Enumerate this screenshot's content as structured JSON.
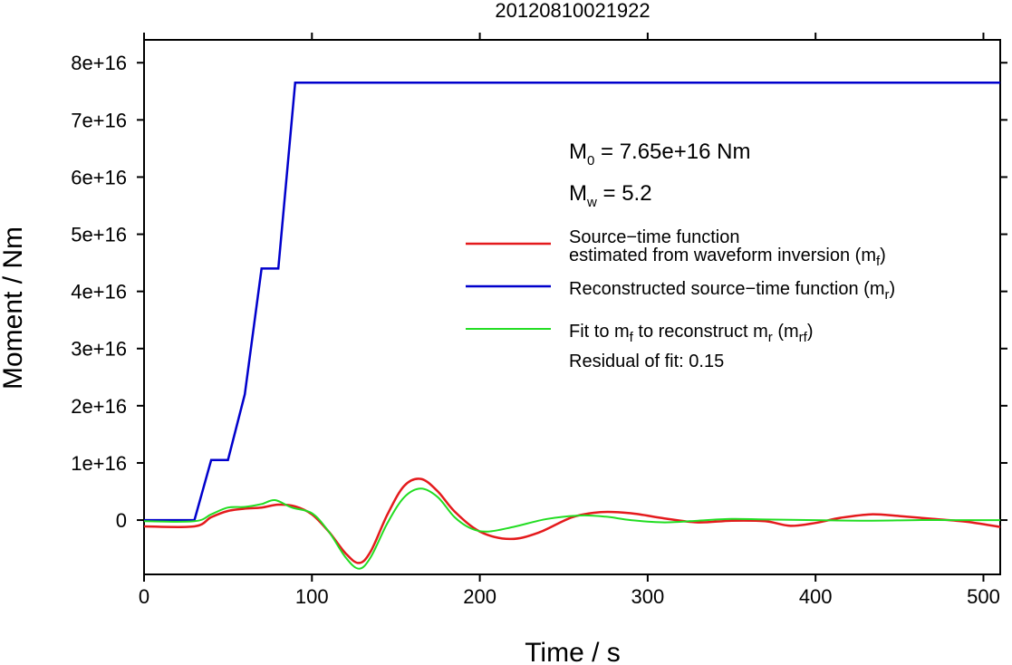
{
  "chart_data": {
    "type": "line",
    "title": "20120810021922",
    "xlabel": "Time / s",
    "ylabel": "Moment / Nm",
    "xlim": [
      0,
      510
    ],
    "ylim": [
      -9500000000000000.0,
      8.4e+16
    ],
    "x_ticks": [
      0,
      100,
      200,
      300,
      400,
      500
    ],
    "x_tick_labels": [
      "0",
      "100",
      "200",
      "300",
      "400",
      "500"
    ],
    "y_ticks": [
      0,
      1e+16,
      2e+16,
      3e+16,
      4e+16,
      5e+16,
      6e+16,
      7e+16,
      8e+16
    ],
    "y_tick_labels": [
      "0",
      "1e+16",
      "2e+16",
      "3e+16",
      "4e+16",
      "5e+16",
      "6e+16",
      "7e+16",
      "8e+16"
    ],
    "grid": false,
    "legend_position": "right",
    "series": [
      {
        "name_main": "Source−time function",
        "name_line2": "estimated from waveform inversion (m",
        "name_sub": "f",
        "name_end": ")",
        "color": "#e41a1c",
        "x": [
          0,
          30,
          40,
          50,
          60,
          70,
          80,
          90,
          100,
          110,
          120,
          128,
          135,
          145,
          155,
          165,
          175,
          185,
          200,
          218,
          235,
          255,
          272,
          290,
          310,
          330,
          350,
          370,
          385,
          400,
          415,
          433,
          450,
          470,
          490,
          510
        ],
        "y": [
          -1100000000000000.0,
          -1100000000000000.0,
          500000000000000.0,
          1600000000000000.0,
          2000000000000000.0,
          2200000000000000.0,
          2700000000000000.0,
          2400000000000000.0,
          1000000000000000.0,
          -2000000000000000.0,
          -5800000000000000.0,
          -7500000000000000.0,
          -5500000000000000.0,
          1000000000000000.0,
          6000000000000000.0,
          7200000000000000.0,
          5000000000000000.0,
          1500000000000000.0,
          -2000000000000000.0,
          -3300000000000000.0,
          -2200000000000000.0,
          500000000000000.0,
          1400000000000000.0,
          1200000000000000.0,
          300000000000000.0,
          -400000000000000.0,
          -100000000000000.0,
          -200000000000000.0,
          -1000000000000000.0,
          -500000000000000.0,
          400000000000000.0,
          1000000000000000.0,
          700000000000000.0,
          200000000000000.0,
          -300000000000000.0,
          -1200000000000000.0
        ]
      },
      {
        "name_main": "Reconstructed source−time function (m",
        "name_sub": "r",
        "name_end": ")",
        "color": "#0000cc",
        "x": [
          0,
          30,
          40,
          50,
          60,
          70,
          80,
          90,
          510
        ],
        "y": [
          0,
          0,
          1.05e+16,
          1.05e+16,
          2.2e+16,
          4.4e+16,
          4.4e+16,
          7.65e+16,
          7.65e+16
        ]
      },
      {
        "name_main": "Fit to m",
        "name_sub": "f",
        "name_mid": " to reconstruct m",
        "name_sub2": "r",
        "name_mid2": " (m",
        "name_sub3": "rf",
        "name_end": ")",
        "color": "#22dd22",
        "x": [
          0,
          30,
          40,
          50,
          60,
          70,
          78,
          88,
          100,
          110,
          120,
          128,
          135,
          145,
          155,
          165,
          175,
          185,
          195,
          205,
          220,
          240,
          260,
          275,
          290,
          310,
          330,
          350,
          370,
          400,
          430,
          460,
          480,
          510
        ],
        "y": [
          -200000000000000.0,
          -200000000000000.0,
          1000000000000000.0,
          2200000000000000.0,
          2300000000000000.0,
          2800000000000000.0,
          3500000000000000.0,
          2200000000000000.0,
          1200000000000000.0,
          -2000000000000000.0,
          -6500000000000000.0,
          -8500000000000000.0,
          -6500000000000000.0,
          -500000000000000.0,
          4000000000000000.0,
          5500000000000000.0,
          4000000000000000.0,
          500000000000000.0,
          -1500000000000000.0,
          -2000000000000000.0,
          -1200000000000000.0,
          200000000000000.0,
          800000000000000.0,
          600000000000000.0,
          0.0,
          -400000000000000.0,
          -100000000000000.0,
          200000000000000.0,
          100000000000000.0,
          0.0,
          -100000000000000.0,
          0.0,
          0.0,
          0.0
        ]
      }
    ],
    "annotations": {
      "m0_label": "M",
      "m0_sub": "0",
      "m0_value": " = 7.65e+16 Nm",
      "mw_label": "M",
      "mw_sub": "w",
      "mw_value": " = 5.2",
      "residual": "Residual of fit: 0.15"
    }
  }
}
